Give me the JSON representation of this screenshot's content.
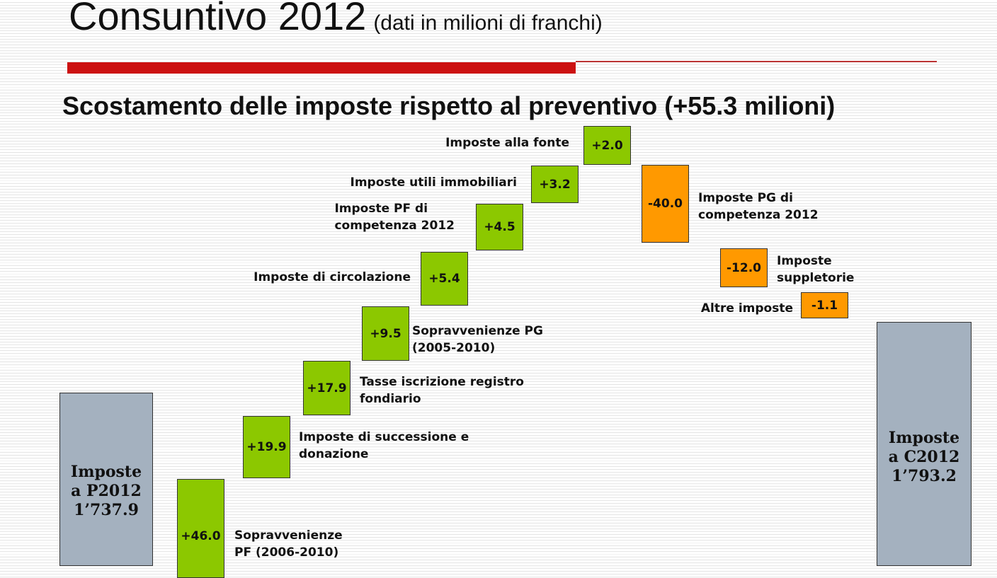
{
  "header": {
    "title": "Consuntivo 2012",
    "title_note": "(dati in milioni di franchi)",
    "subtitle": "Scostamento delle imposte rispetto al preventivo (+55.3 milioni)"
  },
  "colors": {
    "increase": "#8cc800",
    "decrease": "#ff9900",
    "total": "#a4b1bf",
    "accent_rule": "#cc1111"
  },
  "chart_data": {
    "type": "bar",
    "subtype": "waterfall",
    "units": "milioni di franchi",
    "start": {
      "label_lines": [
        "Imposte",
        "a P2012",
        "1’737.9"
      ],
      "value": 1737.9
    },
    "end": {
      "label_lines": [
        "Imposte",
        "a C2012",
        "1’793.2"
      ],
      "value": 1793.2
    },
    "steps": [
      {
        "value": 46.0,
        "value_label": "+46.0",
        "label_lines": [
          "Sopravvenienze",
          "PF (2006-2010)"
        ]
      },
      {
        "value": 19.9,
        "value_label": "+19.9",
        "label_lines": [
          "Imposte di successione e",
          "donazione"
        ]
      },
      {
        "value": 17.9,
        "value_label": "+17.9",
        "label_lines": [
          "Tasse iscrizione registro",
          "fondiario"
        ]
      },
      {
        "value": 9.5,
        "value_label": "+9.5",
        "label_lines": [
          "Sopravvenienze PG",
          "(2005-2010)"
        ]
      },
      {
        "value": 5.4,
        "value_label": "+5.4",
        "label_lines": [
          "Imposte di circolazione"
        ]
      },
      {
        "value": 4.5,
        "value_label": "+4.5",
        "label_lines": [
          "Imposte PF di",
          "competenza 2012"
        ]
      },
      {
        "value": 3.2,
        "value_label": "+3.2",
        "label_lines": [
          "Imposte utili immobiliari"
        ]
      },
      {
        "value": 2.0,
        "value_label": "+2.0",
        "label_lines": [
          "Imposte alla fonte"
        ]
      },
      {
        "value": -40.0,
        "value_label": "-40.0",
        "label_lines": [
          "Imposte PG di",
          "competenza 2012"
        ]
      },
      {
        "value": -12.0,
        "value_label": "-12.0",
        "label_lines": [
          "Imposte",
          "suppletorie"
        ]
      },
      {
        "value": -1.1,
        "value_label": "-1.1",
        "label_lines": [
          "Altre imposte"
        ]
      }
    ]
  }
}
